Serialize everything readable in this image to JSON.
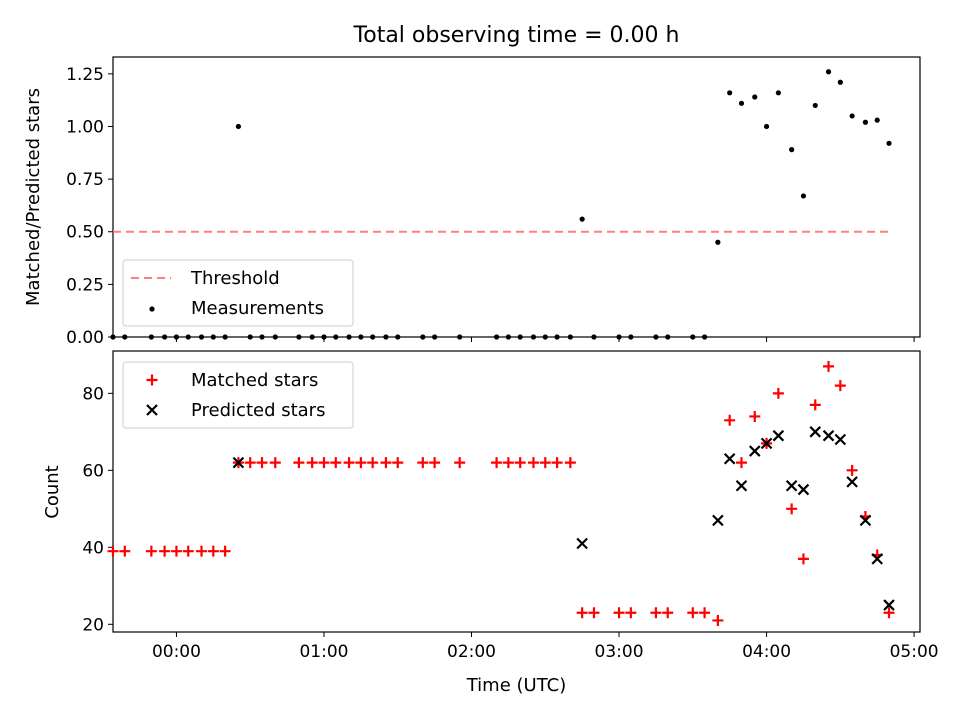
{
  "chart_data": [
    {
      "type": "scatter",
      "title": "Total observing time = 0.00 h",
      "xlabel": "",
      "ylabel": "Matched/Predicted stars",
      "xlim": [
        -0.43,
        5.04
      ],
      "ylim": [
        0,
        1.33
      ],
      "yticks": [
        "0.00",
        "0.25",
        "0.50",
        "0.75",
        "1.00",
        "1.25"
      ],
      "grid": false,
      "legend_position": "lower-left",
      "threshold": {
        "name": "Threshold",
        "value": 0.5,
        "x": [
          -0.43,
          4.83
        ],
        "color": "#ff7f7f",
        "dashed": true
      },
      "series": [
        {
          "name": "Measurements",
          "color": "#000000",
          "marker": "dot",
          "points": [
            [
              -0.43,
              0
            ],
            [
              -0.35,
              0
            ],
            [
              -0.17,
              0
            ],
            [
              -0.08,
              0
            ],
            [
              0.0,
              0
            ],
            [
              0.08,
              0
            ],
            [
              0.17,
              0
            ],
            [
              0.25,
              0
            ],
            [
              0.33,
              0
            ],
            [
              0.42,
              1.0
            ],
            [
              0.5,
              0
            ],
            [
              0.58,
              0
            ],
            [
              0.67,
              0
            ],
            [
              0.83,
              0
            ],
            [
              0.92,
              0
            ],
            [
              1.0,
              0
            ],
            [
              1.08,
              0
            ],
            [
              1.17,
              0
            ],
            [
              1.25,
              0
            ],
            [
              1.33,
              0
            ],
            [
              1.42,
              0
            ],
            [
              1.5,
              0
            ],
            [
              1.67,
              0
            ],
            [
              1.75,
              0
            ],
            [
              1.92,
              0
            ],
            [
              2.17,
              0
            ],
            [
              2.25,
              0
            ],
            [
              2.33,
              0
            ],
            [
              2.42,
              0
            ],
            [
              2.5,
              0
            ],
            [
              2.58,
              0
            ],
            [
              2.67,
              0
            ],
            [
              2.75,
              0.56
            ],
            [
              2.83,
              0
            ],
            [
              3.0,
              0
            ],
            [
              3.08,
              0
            ],
            [
              3.25,
              0
            ],
            [
              3.33,
              0
            ],
            [
              3.5,
              0
            ],
            [
              3.58,
              0
            ],
            [
              3.67,
              0.45
            ],
            [
              3.75,
              1.16
            ],
            [
              3.83,
              1.11
            ],
            [
              3.92,
              1.14
            ],
            [
              4.0,
              1.0
            ],
            [
              4.08,
              1.16
            ],
            [
              4.17,
              0.89
            ],
            [
              4.25,
              0.67
            ],
            [
              4.33,
              1.1
            ],
            [
              4.42,
              1.26
            ],
            [
              4.5,
              1.21
            ],
            [
              4.58,
              1.05
            ],
            [
              4.67,
              1.02
            ],
            [
              4.75,
              1.03
            ],
            [
              4.83,
              0.92
            ]
          ]
        }
      ]
    },
    {
      "type": "scatter",
      "title": "",
      "xlabel": "Time (UTC)",
      "ylabel": "Count",
      "xlim": [
        -0.43,
        5.04
      ],
      "ylim": [
        18,
        91
      ],
      "yticks": [
        "20",
        "40",
        "60",
        "80"
      ],
      "xticks": [
        "00:00",
        "01:00",
        "02:00",
        "03:00",
        "04:00",
        "05:00"
      ],
      "grid": false,
      "legend_position": "upper-left",
      "series": [
        {
          "name": "Matched stars",
          "color": "#ff0000",
          "marker": "plus",
          "points": [
            [
              -0.43,
              39
            ],
            [
              -0.35,
              39
            ],
            [
              -0.17,
              39
            ],
            [
              -0.08,
              39
            ],
            [
              0.0,
              39
            ],
            [
              0.08,
              39
            ],
            [
              0.17,
              39
            ],
            [
              0.25,
              39
            ],
            [
              0.33,
              39
            ],
            [
              0.42,
              62
            ],
            [
              0.5,
              62
            ],
            [
              0.58,
              62
            ],
            [
              0.67,
              62
            ],
            [
              0.83,
              62
            ],
            [
              0.92,
              62
            ],
            [
              1.0,
              62
            ],
            [
              1.08,
              62
            ],
            [
              1.17,
              62
            ],
            [
              1.25,
              62
            ],
            [
              1.33,
              62
            ],
            [
              1.42,
              62
            ],
            [
              1.5,
              62
            ],
            [
              1.67,
              62
            ],
            [
              1.75,
              62
            ],
            [
              1.92,
              62
            ],
            [
              2.17,
              62
            ],
            [
              2.25,
              62
            ],
            [
              2.33,
              62
            ],
            [
              2.42,
              62
            ],
            [
              2.5,
              62
            ],
            [
              2.58,
              62
            ],
            [
              2.67,
              62
            ],
            [
              2.75,
              23
            ],
            [
              2.83,
              23
            ],
            [
              3.0,
              23
            ],
            [
              3.08,
              23
            ],
            [
              3.25,
              23
            ],
            [
              3.33,
              23
            ],
            [
              3.5,
              23
            ],
            [
              3.58,
              23
            ],
            [
              3.67,
              21
            ],
            [
              3.75,
              73
            ],
            [
              3.83,
              62
            ],
            [
              3.92,
              74
            ],
            [
              4.0,
              67
            ],
            [
              4.08,
              80
            ],
            [
              4.17,
              50
            ],
            [
              4.25,
              37
            ],
            [
              4.33,
              77
            ],
            [
              4.42,
              87
            ],
            [
              4.5,
              82
            ],
            [
              4.58,
              60
            ],
            [
              4.67,
              48
            ],
            [
              4.75,
              38
            ],
            [
              4.83,
              23
            ]
          ]
        },
        {
          "name": "Predicted stars",
          "color": "#000000",
          "marker": "x",
          "points": [
            [
              0.42,
              62
            ],
            [
              2.75,
              41
            ],
            [
              3.67,
              47
            ],
            [
              3.75,
              63
            ],
            [
              3.83,
              56
            ],
            [
              3.92,
              65
            ],
            [
              4.0,
              67
            ],
            [
              4.08,
              69
            ],
            [
              4.17,
              56
            ],
            [
              4.25,
              55
            ],
            [
              4.33,
              70
            ],
            [
              4.42,
              69
            ],
            [
              4.5,
              68
            ],
            [
              4.58,
              57
            ],
            [
              4.67,
              47
            ],
            [
              4.75,
              37
            ],
            [
              4.83,
              25
            ]
          ]
        }
      ]
    }
  ]
}
